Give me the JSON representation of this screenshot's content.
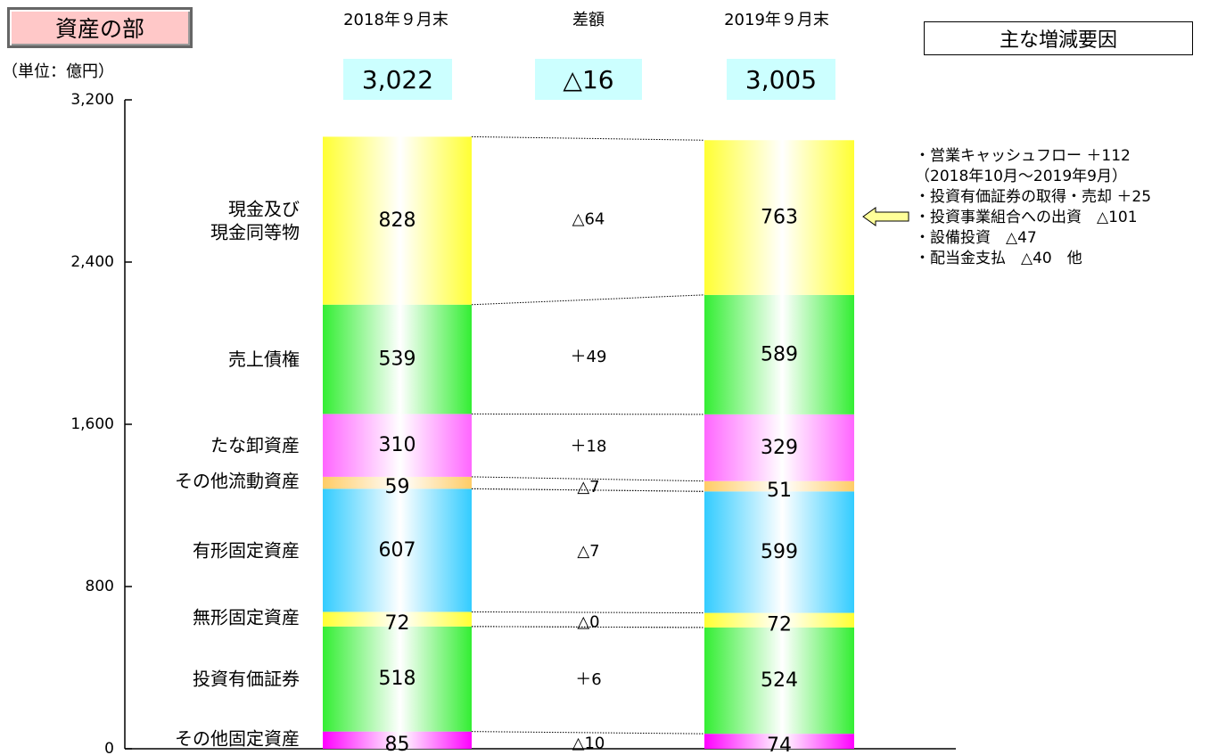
{
  "section_title": "資産の部",
  "unit": "（単位：億円）",
  "headers": {
    "prev": "2018年９月末",
    "diff": "差額",
    "curr": "2019年９月末"
  },
  "totals": {
    "prev": "3,022",
    "diff": "△16",
    "curr": "3,005"
  },
  "factors": {
    "title": "主な増減要因",
    "items": [
      "・営業キャッシュフロー ＋112",
      "（2018年10月～2019年9月）",
      "・投資有価証券の取得・売却 ＋25",
      "・投資事業組合への出資　△101",
      "・設備投資　△47",
      "・配当金支払　△40　他"
    ]
  },
  "arrow_icon": "left-arrow-icon",
  "chart_data": {
    "type": "bar",
    "stacked": true,
    "ylim": [
      0,
      3200
    ],
    "yticks": [
      0,
      800,
      1600,
      2400,
      3200
    ],
    "ytick_labels": [
      "0",
      "800",
      "1,600",
      "2,400",
      "3,200"
    ],
    "columns": [
      "2018年９月末",
      "2019年９月末"
    ],
    "categories": [
      {
        "name": "その他固定資産",
        "prev": 85,
        "curr": 74,
        "diff": "△10",
        "color": "#ff00ff",
        "connectors": true
      },
      {
        "name": "投資有価証券",
        "prev": 518,
        "curr": 524,
        "diff": "＋6",
        "color": "#33ee33",
        "connectors": false
      },
      {
        "name": "無形固定資産",
        "prev": 72,
        "curr": 72,
        "diff": "△0",
        "color": "#ffff33",
        "connectors": true
      },
      {
        "name": "有形固定資産",
        "prev": 607,
        "curr": 599,
        "diff": "△7",
        "color": "#33ccff",
        "connectors": false
      },
      {
        "name": "その他流動資産",
        "prev": 59,
        "curr": 51,
        "diff": "△7",
        "color": "#ffcc66",
        "connectors": true
      },
      {
        "name": "たな卸資産",
        "prev": 310,
        "curr": 329,
        "diff": "＋18",
        "color": "#ff66ff",
        "connectors": false
      },
      {
        "name": "売上債権",
        "prev": 539,
        "curr": 589,
        "diff": "＋49",
        "color": "#33ee33",
        "connectors": false
      },
      {
        "name": "現金及び\n現金同等物",
        "prev": 828,
        "curr": 763,
        "diff": "△64",
        "color": "#ffff33",
        "connectors": false
      }
    ]
  }
}
